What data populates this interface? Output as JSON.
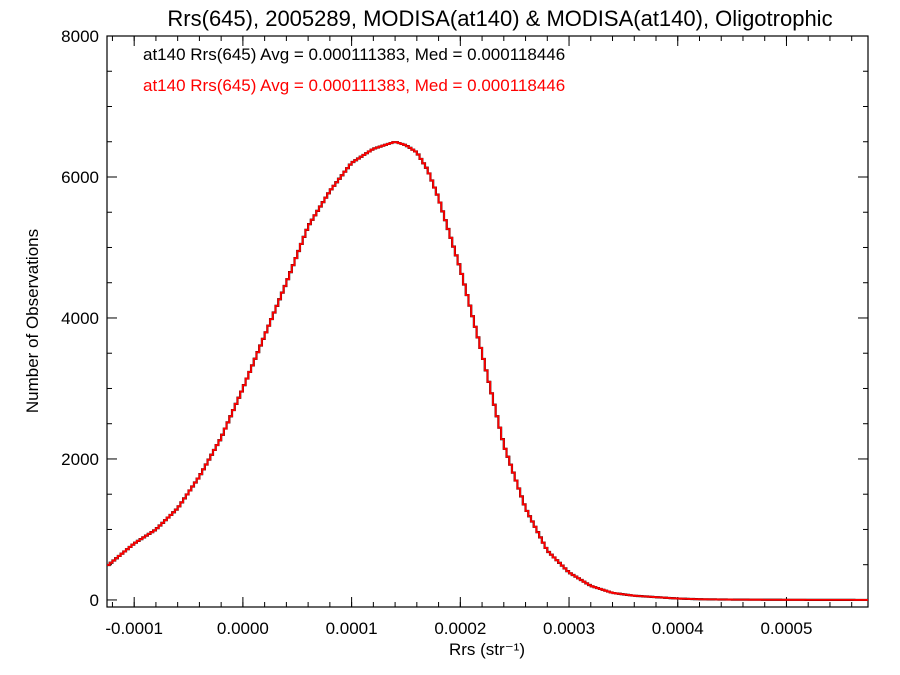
{
  "chart_data": {
    "type": "line",
    "title": "Rrs(645), 2005289, MODISA(at140) & MODISA(at140), Oligotrophic",
    "xlabel": "Rrs (str⁻¹)",
    "ylabel": "Number of Observations",
    "xlim": [
      -0.000125,
      0.000575
    ],
    "ylim": [
      -100,
      8000
    ],
    "x_ticks": [
      -0.0001,
      0.0,
      0.0001,
      0.0002,
      0.0003,
      0.0004,
      0.0005
    ],
    "x_tick_labels": [
      "-0.0001",
      "0.0000",
      "0.0001",
      "0.0002",
      "0.0003",
      "0.0004",
      "0.0005"
    ],
    "y_ticks": [
      0,
      2000,
      4000,
      6000,
      8000
    ],
    "y_tick_labels": [
      "0",
      "2000",
      "4000",
      "6000",
      "8000"
    ],
    "grid": false,
    "legend_position": "top-left",
    "legend": [
      {
        "text": "at140 Rrs(645) Avg = 0.000111383, Med = 0.000118446",
        "color": "#000000"
      },
      {
        "text": "at140 Rrs(645) Avg = 0.000111383, Med = 0.000118446",
        "color": "#ff0000"
      }
    ],
    "series": [
      {
        "color": "#000000",
        "x": [
          -0.000125,
          -0.0001,
          -8e-05,
          -6e-05,
          -4e-05,
          -2e-05,
          0.0,
          2e-05,
          4e-05,
          6e-05,
          8e-05,
          0.0001,
          0.00012,
          0.00014,
          0.00015,
          0.00016,
          0.00017,
          0.00018,
          0.0002,
          0.00022,
          0.00024,
          0.00026,
          0.00028,
          0.0003,
          0.00032,
          0.00034,
          0.00036,
          0.00038,
          0.0004,
          0.00042,
          0.00045,
          0.0005,
          0.00055,
          0.000575
        ],
        "y": [
          480,
          800,
          1000,
          1300,
          1750,
          2300,
          3000,
          3750,
          4500,
          5300,
          5800,
          6200,
          6400,
          6500,
          6450,
          6350,
          6100,
          5700,
          4700,
          3500,
          2200,
          1300,
          700,
          390,
          200,
          100,
          60,
          40,
          20,
          10,
          5,
          2,
          1,
          0
        ]
      },
      {
        "color": "#ff0000",
        "x": [
          -0.000125,
          -0.0001,
          -8e-05,
          -6e-05,
          -4e-05,
          -2e-05,
          0.0,
          2e-05,
          4e-05,
          6e-05,
          8e-05,
          0.0001,
          0.00012,
          0.00014,
          0.00015,
          0.00016,
          0.00017,
          0.00018,
          0.0002,
          0.00022,
          0.00024,
          0.00026,
          0.00028,
          0.0003,
          0.00032,
          0.00034,
          0.00036,
          0.00038,
          0.0004,
          0.00042,
          0.00045,
          0.0005,
          0.00055,
          0.000575
        ],
        "y": [
          480,
          800,
          1000,
          1300,
          1750,
          2300,
          3000,
          3750,
          4500,
          5300,
          5800,
          6200,
          6400,
          6500,
          6450,
          6350,
          6100,
          5700,
          4700,
          3500,
          2200,
          1300,
          700,
          390,
          200,
          100,
          60,
          40,
          20,
          10,
          5,
          2,
          1,
          0
        ]
      }
    ]
  }
}
